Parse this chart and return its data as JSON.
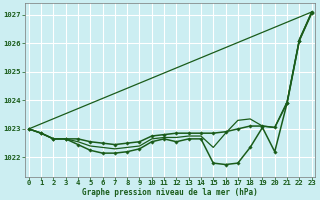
{
  "title": "Graphe pression niveau de la mer (hPa)",
  "bg_color": "#cceef2",
  "grid_color": "#aadddd",
  "line_color": "#1a5c1a",
  "ylim": [
    1021.3,
    1027.4
  ],
  "xlim": [
    -0.3,
    23.3
  ],
  "yticks": [
    1022,
    1023,
    1024,
    1025,
    1026,
    1027
  ],
  "xticks": [
    0,
    1,
    2,
    3,
    4,
    5,
    6,
    7,
    8,
    9,
    10,
    11,
    12,
    13,
    14,
    15,
    16,
    17,
    18,
    19,
    20,
    21,
    22,
    23
  ],
  "series": [
    {
      "x": [
        0,
        23
      ],
      "y": [
        1023.0,
        1027.1
      ],
      "marker": false,
      "linewidth": 0.9
    },
    {
      "x": [
        0,
        1,
        2,
        3,
        4,
        5,
        6,
        7,
        8,
        9,
        10,
        11,
        12,
        13,
        14,
        15,
        16,
        17,
        18,
        19,
        20,
        21,
        22,
        23
      ],
      "y": [
        1023.0,
        1022.85,
        1022.65,
        1022.65,
        1022.65,
        1022.55,
        1022.5,
        1022.45,
        1022.5,
        1022.55,
        1022.75,
        1022.8,
        1022.85,
        1022.85,
        1022.85,
        1022.85,
        1022.9,
        1023.0,
        1023.1,
        1023.1,
        1023.05,
        1023.9,
        1026.1,
        1027.05
      ],
      "marker": true,
      "linewidth": 1.1
    },
    {
      "x": [
        0,
        1,
        2,
        3,
        4,
        5,
        6,
        7,
        8,
        9,
        10,
        11,
        12,
        13,
        14,
        15,
        16,
        17,
        18,
        19,
        20,
        21,
        22,
        23
      ],
      "y": [
        1023.0,
        1022.85,
        1022.65,
        1022.65,
        1022.45,
        1022.25,
        1022.15,
        1022.15,
        1022.2,
        1022.3,
        1022.55,
        1022.65,
        1022.55,
        1022.65,
        1022.65,
        1021.8,
        1021.75,
        1021.8,
        1022.35,
        1023.05,
        1022.2,
        1023.9,
        1026.1,
        1027.1
      ],
      "marker": true,
      "linewidth": 1.1
    },
    {
      "x": [
        0,
        1,
        2,
        3,
        4,
        5,
        6,
        7,
        8,
        9,
        10,
        11,
        12,
        13,
        14,
        15,
        16,
        17,
        18,
        19,
        20,
        21,
        22,
        23
      ],
      "y": [
        1023.0,
        1022.85,
        1022.65,
        1022.65,
        1022.55,
        1022.4,
        1022.35,
        1022.3,
        1022.35,
        1022.4,
        1022.65,
        1022.7,
        1022.7,
        1022.75,
        1022.75,
        1022.35,
        1022.85,
        1023.3,
        1023.35,
        1023.1,
        1023.05,
        1023.95,
        1026.15,
        1027.07
      ],
      "marker": false,
      "linewidth": 0.9
    }
  ]
}
